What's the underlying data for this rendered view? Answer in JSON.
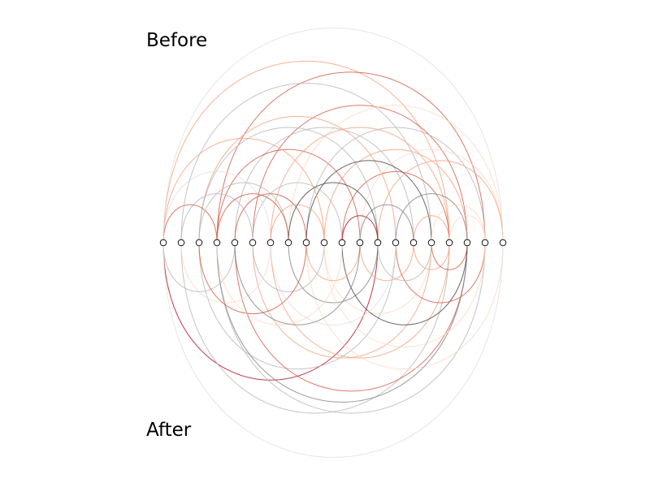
{
  "labels": {
    "top": "Before",
    "bottom": "After"
  },
  "chart_data": {
    "type": "arc-diagram",
    "node_count": 20,
    "colors": {
      "node_stroke": "#000000",
      "node_fill": "#ffffff",
      "palette": [
        "#b2182b",
        "#d6604d",
        "#f4a582",
        "#fddbc7",
        "#bababa",
        "#878787",
        "#4d4d4d",
        "#e0e0e0"
      ]
    },
    "before_edges": [
      {
        "from": 16,
        "to": 0,
        "c": 2
      },
      {
        "from": 3,
        "to": 18,
        "c": 1
      },
      {
        "from": 5,
        "to": 17,
        "c": 1
      },
      {
        "from": 1,
        "to": 15,
        "c": 4
      },
      {
        "from": 7,
        "to": 19,
        "c": 3
      },
      {
        "from": 4,
        "to": 14,
        "c": 4
      },
      {
        "from": 11,
        "to": 3,
        "c": 1
      },
      {
        "from": 6,
        "to": 16,
        "c": 2
      },
      {
        "from": 8,
        "to": 18,
        "c": 4
      },
      {
        "from": 13,
        "to": 2,
        "c": 2
      },
      {
        "from": 9,
        "to": 17,
        "c": 2
      },
      {
        "from": 10,
        "to": 16,
        "c": 1
      },
      {
        "from": 11,
        "to": 19,
        "c": 3
      },
      {
        "from": 2,
        "to": 12,
        "c": 4
      },
      {
        "from": 15,
        "to": 8,
        "c": 6
      },
      {
        "from": 12,
        "to": 19,
        "c": 2
      },
      {
        "from": 9,
        "to": 0,
        "c": 2
      },
      {
        "from": 5,
        "to": 10,
        "c": 4
      },
      {
        "from": 0,
        "to": 6,
        "c": 7
      },
      {
        "from": 1,
        "to": 5,
        "c": 4
      },
      {
        "from": 4,
        "to": 8,
        "c": 1
      },
      {
        "from": 13,
        "to": 17,
        "c": 5
      },
      {
        "from": 6,
        "to": 9,
        "c": 2
      },
      {
        "from": 10,
        "to": 12,
        "c": 0
      },
      {
        "from": 14,
        "to": 16,
        "c": 2
      },
      {
        "from": 15,
        "to": 18,
        "c": 3
      },
      {
        "from": 0,
        "to": 3,
        "c": 1
      },
      {
        "from": 2,
        "to": 7,
        "c": 4
      },
      {
        "from": 11,
        "to": 14,
        "c": 5
      },
      {
        "from": 16,
        "to": 18,
        "c": 3
      },
      {
        "from": 0,
        "to": 19,
        "c": 7
      },
      {
        "from": 12,
        "to": 7,
        "c": 6
      },
      {
        "from": 3,
        "to": 7,
        "c": 1
      }
    ],
    "after_edges": [
      {
        "from": 12,
        "to": 0,
        "c": 0
      },
      {
        "from": 16,
        "to": 1,
        "c": 4
      },
      {
        "from": 2,
        "to": 13,
        "c": 4
      },
      {
        "from": 3,
        "to": 18,
        "c": 4
      },
      {
        "from": 4,
        "to": 17,
        "c": 1
      },
      {
        "from": 5,
        "to": 15,
        "c": 2
      },
      {
        "from": 8,
        "to": 19,
        "c": 3
      },
      {
        "from": 17,
        "to": 3,
        "c": 5
      },
      {
        "from": 6,
        "to": 16,
        "c": 2
      },
      {
        "from": 9,
        "to": 15,
        "c": 3
      },
      {
        "from": 7,
        "to": 12,
        "c": 5
      },
      {
        "from": 10,
        "to": 17,
        "c": 6
      },
      {
        "from": 11,
        "to": 14,
        "c": 2
      },
      {
        "from": 5,
        "to": 9,
        "c": 4
      },
      {
        "from": 13,
        "to": 18,
        "c": 1
      },
      {
        "from": 1,
        "to": 6,
        "c": 3
      },
      {
        "from": 14,
        "to": 16,
        "c": 2
      },
      {
        "from": 0,
        "to": 4,
        "c": 4
      },
      {
        "from": 8,
        "to": 11,
        "c": 2
      },
      {
        "from": 15,
        "to": 17,
        "c": 1
      },
      {
        "from": 2,
        "to": 8,
        "c": 1
      },
      {
        "from": 3,
        "to": 10,
        "c": 3
      },
      {
        "from": 12,
        "to": 15,
        "c": 4
      },
      {
        "from": 6,
        "to": 13,
        "c": 7
      },
      {
        "from": 0,
        "to": 19,
        "c": 7
      },
      {
        "from": 4,
        "to": 11,
        "c": 5
      },
      {
        "from": 9,
        "to": 18,
        "c": 3
      }
    ]
  }
}
